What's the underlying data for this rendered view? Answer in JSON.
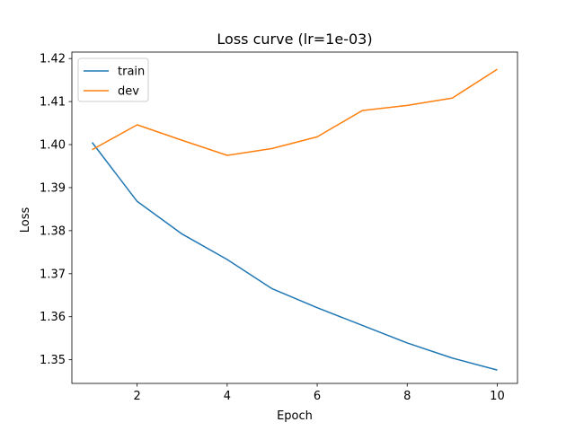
{
  "chart_data": {
    "type": "line",
    "title": "Loss curve (lr=1e-03)",
    "xlabel": "Epoch",
    "ylabel": "Loss",
    "x": [
      1,
      2,
      3,
      4,
      5,
      6,
      7,
      8,
      9,
      10
    ],
    "xlim": [
      0.55,
      10.45
    ],
    "ylim": [
      1.3445,
      1.4215
    ],
    "xticks": [
      2,
      4,
      6,
      8,
      10
    ],
    "xtick_labels": [
      "2",
      "4",
      "6",
      "8",
      "10"
    ],
    "yticks": [
      1.35,
      1.36,
      1.37,
      1.38,
      1.39,
      1.4,
      1.41,
      1.42
    ],
    "ytick_labels": [
      "1.35",
      "1.36",
      "1.37",
      "1.38",
      "1.39",
      "1.40",
      "1.41",
      "1.42"
    ],
    "grid": false,
    "legend_position": "top-left",
    "series": [
      {
        "name": "train",
        "color": "#1f77b4",
        "values": [
          1.4005,
          1.3868,
          1.3792,
          1.3733,
          1.3665,
          1.3621,
          1.358,
          1.3539,
          1.3504,
          1.3476
        ]
      },
      {
        "name": "dev",
        "color": "#ff7f0e",
        "values": [
          1.3988,
          1.4046,
          1.401,
          1.3975,
          1.3991,
          1.4018,
          1.4079,
          1.4091,
          1.4108,
          1.4175
        ]
      }
    ]
  }
}
